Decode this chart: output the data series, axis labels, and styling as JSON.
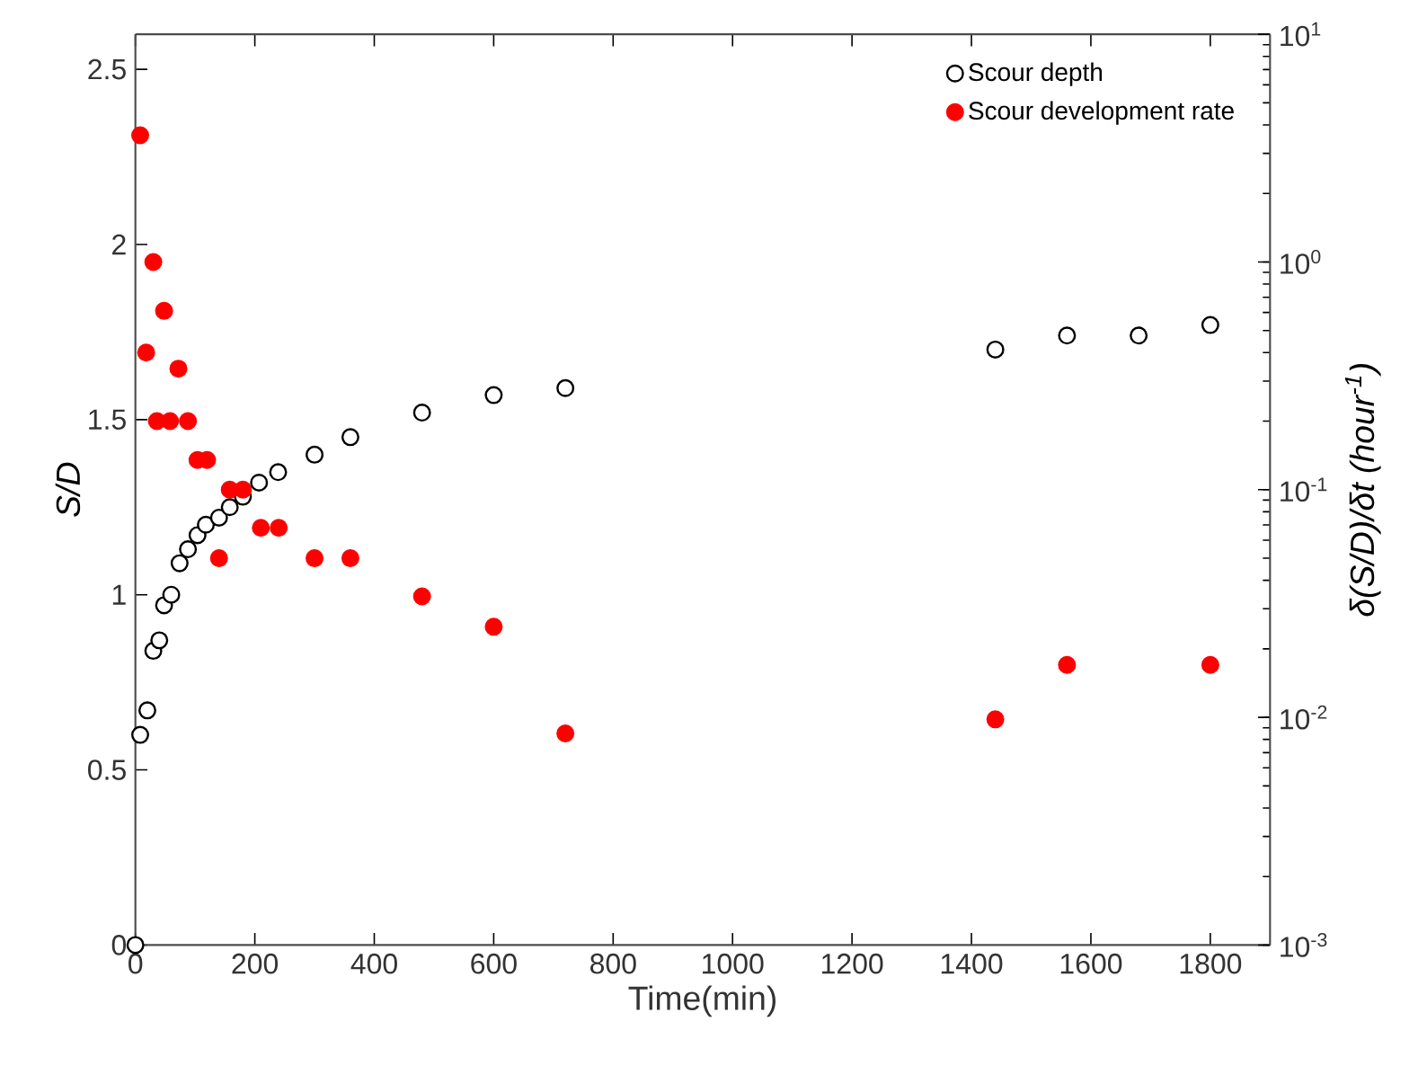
{
  "chart_data": {
    "type": "scatter",
    "xlabel": "Time(min)",
    "ylabel": "S/D",
    "y2label": "δ(S/D)/δt (hour$^{-1}$)",
    "xlim": [
      0,
      1900
    ],
    "xticks": [
      0,
      200,
      400,
      600,
      800,
      1000,
      1200,
      1400,
      1600,
      1800
    ],
    "ylim": [
      0,
      2.6
    ],
    "yticks": [
      0,
      0.5,
      1,
      1.5,
      2,
      2.5
    ],
    "y2lim": [
      0.001,
      10
    ],
    "y2ticks": [
      {
        "value": 0.001,
        "label": "10$^{-3}$"
      },
      {
        "value": 0.01,
        "label": "10$^{-2}$"
      },
      {
        "value": 0.1,
        "label": "10$^{-1}$"
      },
      {
        "value": 1,
        "label": "10$^{0}$"
      },
      {
        "value": 10,
        "label": "10$^{1}$"
      }
    ],
    "log": "y2",
    "legend": "top right",
    "series": [
      {
        "name": "Scour depth",
        "color": "#000000",
        "marker": "circle",
        "x": [
          0,
          8,
          20,
          30,
          40,
          48,
          60,
          74,
          88,
          104,
          118,
          140,
          158,
          180,
          207,
          239,
          300,
          360,
          480,
          600,
          720,
          1440,
          1560,
          1680,
          1800
        ],
        "values": [
          0,
          0.6,
          0.67,
          0.84,
          0.87,
          0.97,
          1.0,
          1.09,
          1.13,
          1.17,
          1.2,
          1.22,
          1.25,
          1.28,
          1.32,
          1.35,
          1.4,
          1.45,
          1.52,
          1.57,
          1.59,
          1.7,
          1.74,
          1.74,
          1.77
        ]
      },
      {
        "name": "Scour development rate",
        "color": "#ff0000",
        "marker": "circle",
        "axis": "y2",
        "x": [
          8,
          18,
          30,
          36,
          48,
          58,
          72,
          88,
          104,
          120,
          140,
          158,
          180,
          210,
          240,
          300,
          360,
          480,
          600,
          720,
          1440,
          1560,
          1800
        ],
        "values": [
          3.6,
          0.4,
          1.0,
          0.2,
          0.61,
          0.2,
          0.34,
          0.2,
          0.135,
          0.135,
          0.05,
          0.1,
          0.1,
          0.068,
          0.068,
          0.05,
          0.05,
          0.034,
          0.025,
          0.0085,
          0.0098,
          0.017,
          0.017
        ]
      }
    ]
  }
}
